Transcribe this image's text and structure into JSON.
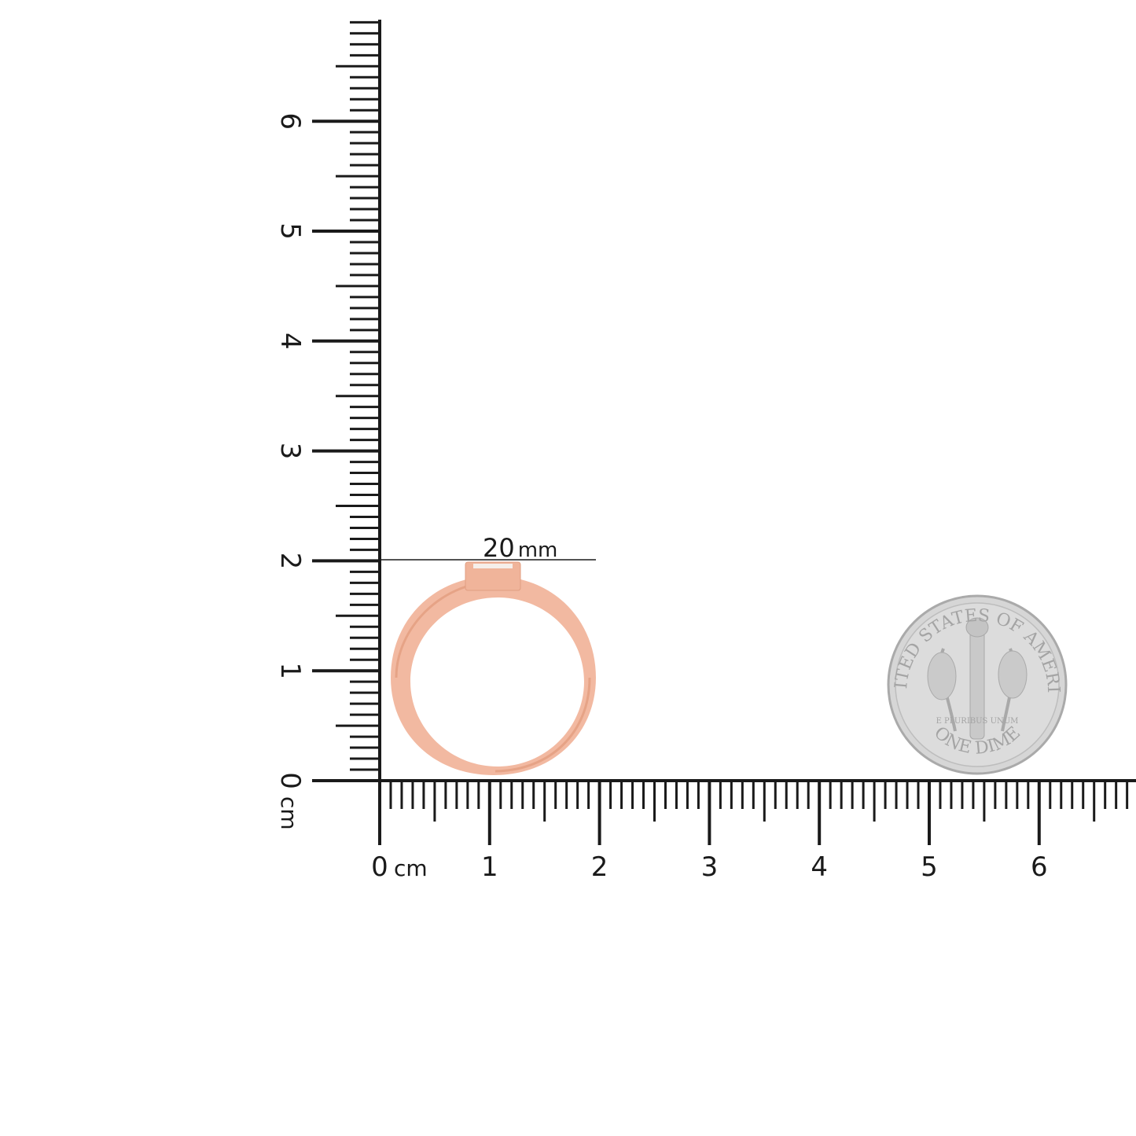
{
  "rulers": {
    "horizontal": {
      "labels": [
        "0",
        "1",
        "2",
        "3",
        "4",
        "5",
        "6"
      ],
      "unit": "cm",
      "max_cm": 6.9
    },
    "vertical": {
      "labels": [
        "0",
        "1",
        "2",
        "3",
        "4",
        "5",
        "6"
      ],
      "unit": "cm",
      "max_cm": 6.9
    }
  },
  "measurement": {
    "label": "20 mm",
    "value_mm": 20
  },
  "colors": {
    "ruler": "#1a1a1a",
    "ring": "#f2b9a1",
    "ring_shade": "#e6a386",
    "coin": "#d4d4d4"
  },
  "coin": {
    "top_text": "UNITED STATES OF AMERICA",
    "bottom_text": "ONE DIME",
    "motto": "E PLURIBUS UNUM"
  }
}
